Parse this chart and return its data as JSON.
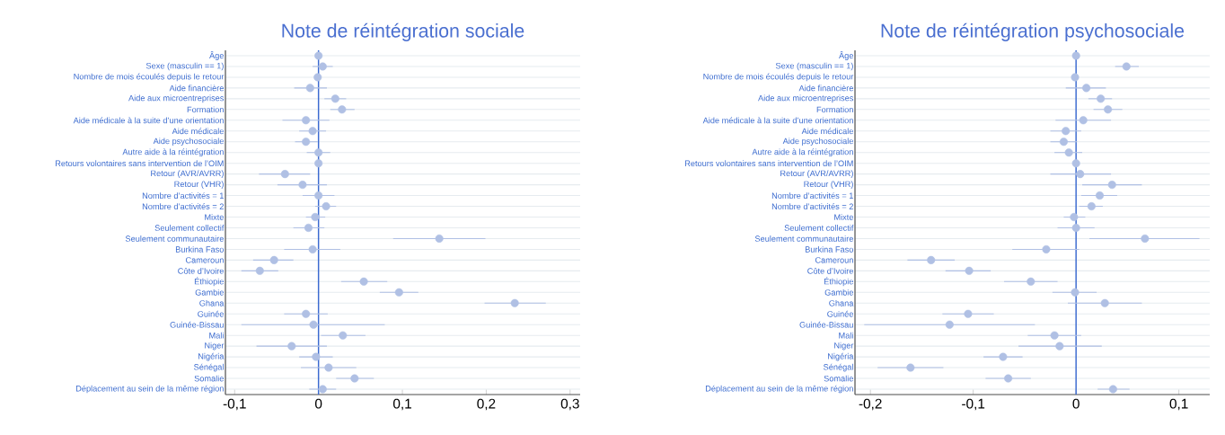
{
  "chart_data": [
    {
      "type": "scatter",
      "orientation": "horizontal",
      "title": "Note de réintégration sociale",
      "categories": [
        "Âge",
        "Sexe (masculin == 1)",
        "Nombre de mois écoulés depuis le retour",
        "Aide financière",
        "Aide aux microentreprises",
        "Formation",
        "Aide médicale à la suite d’une orientation",
        "Aide médicale",
        "Aide psychosociale",
        "Autre aide à la réintégration",
        "Retours volontaires sans intervention de l’OIM",
        "Retour (AVR/AVRR)",
        "Retour (VHR)",
        "Nombre d’activités = 1",
        "Nombre d’activités = 2",
        "Mixte",
        "Seulement collectif",
        "Seulement communautaire",
        "Burkina Faso",
        "Cameroun",
        "Côte d’Ivoire",
        "Éthiopie",
        "Gambie",
        "Ghana",
        "Guinée",
        "Guinée-Bissau",
        "Mali",
        "Niger",
        "Nigéria",
        "Sénégal",
        "Somalie",
        "Déplacement au sein de la même région"
      ],
      "values": [
        0,
        0.005,
        -0.001,
        -0.01,
        0.02,
        0.028,
        -0.015,
        -0.007,
        -0.015,
        0,
        0,
        -0.04,
        -0.019,
        0,
        0.009,
        -0.004,
        -0.012,
        0.144,
        -0.007,
        -0.053,
        -0.07,
        0.054,
        0.096,
        0.234,
        -0.015,
        -0.006,
        0.029,
        -0.032,
        -0.003,
        0.012,
        0.043,
        0.005
      ],
      "errors": [
        null,
        [
          -0.007,
          0.017
        ],
        null,
        [
          -0.029,
          0.01
        ],
        [
          0.007,
          0.033
        ],
        [
          0.014,
          0.043
        ],
        [
          -0.043,
          0.013
        ],
        [
          -0.023,
          0.009
        ],
        [
          -0.028,
          -0.001
        ],
        [
          -0.014,
          0.014
        ],
        null,
        [
          -0.071,
          -0.01
        ],
        [
          -0.049,
          0.01
        ],
        [
          -0.019,
          0.019
        ],
        [
          -0.004,
          0.021
        ],
        [
          -0.015,
          0.008
        ],
        [
          -0.03,
          0.007
        ],
        [
          0.089,
          0.199
        ],
        [
          -0.041,
          0.026
        ],
        [
          -0.078,
          -0.03
        ],
        [
          -0.092,
          -0.048
        ],
        [
          0.027,
          0.082
        ],
        [
          0.073,
          0.119
        ],
        [
          0.198,
          0.271
        ],
        [
          -0.041,
          0.011
        ],
        [
          -0.092,
          0.079
        ],
        [
          0.003,
          0.056
        ],
        [
          -0.074,
          0.01
        ],
        [
          -0.023,
          0.017
        ],
        [
          -0.021,
          0.045
        ],
        [
          0.021,
          0.066
        ],
        [
          -0.011,
          0.021
        ]
      ],
      "color": "#b0c0e4",
      "grid": "y",
      "xlim": [
        -0.111,
        0.312
      ],
      "xticks": [
        {
          "value": -0.1,
          "label": "-0,1"
        },
        0,
        {
          "value": 0.1,
          "label": "0,1"
        },
        {
          "value": 0.2,
          "label": "0,2"
        },
        {
          "value": 0.3,
          "label": "0,3"
        }
      ],
      "ref_lines": [
        {
          "axis": "x",
          "value": 0,
          "color": "#3b6ad0"
        }
      ]
    },
    {
      "type": "scatter",
      "orientation": "horizontal",
      "title": "Note de réintégration psychosociale",
      "categories": [
        "Âge",
        "Sexe (masculin == 1)",
        "Nombre de mois écoulés depuis le retour",
        "Aide financière",
        "Aide aux microentreprises",
        "Formation",
        "Aide médicale à la suite d’une orientation",
        "Aide médicale",
        "Aide psychosociale",
        "Autre aide à la réintégration",
        "Retours volontaires sans intervention de l’OIM",
        "Retour (AVR/AVRR)",
        "Retour (VHR)",
        "Nombre d’activités = 1",
        "Nombre d’activités = 2",
        "Mixte",
        "Seulement collectif",
        "Seulement communautaire",
        "Burkina Faso",
        "Cameroun",
        "Côte d’Ivoire",
        "Éthiopie",
        "Gambie",
        "Ghana",
        "Guinée",
        "Guinée-Bissau",
        "Mali",
        "Niger",
        "Nigéria",
        "Sénégal",
        "Somalie",
        "Déplacement au sein de la même région"
      ],
      "values": [
        0,
        0.049,
        -0.001,
        0.01,
        0.024,
        0.031,
        0.007,
        -0.01,
        -0.012,
        -0.007,
        0,
        0.004,
        0.035,
        0.023,
        0.015,
        -0.002,
        0,
        0.067,
        -0.029,
        -0.141,
        -0.104,
        -0.044,
        -0.001,
        0.028,
        -0.105,
        -0.123,
        -0.021,
        -0.016,
        -0.071,
        -0.161,
        -0.066,
        0.036
      ],
      "errors": [
        null,
        [
          0.038,
          0.061
        ],
        null,
        [
          -0.01,
          0.029
        ],
        [
          0.012,
          0.035
        ],
        [
          0.017,
          0.045
        ],
        [
          -0.02,
          0.034
        ],
        [
          -0.025,
          0.005
        ],
        [
          -0.025,
          0.001
        ],
        [
          -0.021,
          0.006
        ],
        null,
        [
          -0.025,
          0.034
        ],
        [
          0.006,
          0.064
        ],
        [
          0.005,
          0.04
        ],
        [
          0.003,
          0.026
        ],
        [
          -0.012,
          0.009
        ],
        [
          -0.018,
          0.018
        ],
        [
          0.013,
          0.12
        ],
        [
          -0.062,
          0.003
        ],
        [
          -0.164,
          -0.118
        ],
        [
          -0.127,
          -0.083
        ],
        [
          -0.07,
          -0.018
        ],
        [
          -0.023,
          0.02
        ],
        [
          -0.008,
          0.064
        ],
        [
          -0.13,
          -0.08
        ],
        [
          -0.206,
          -0.04
        ],
        [
          -0.047,
          0.005
        ],
        [
          -0.056,
          0.025
        ],
        [
          -0.09,
          -0.052
        ],
        [
          -0.193,
          -0.129
        ],
        [
          -0.088,
          -0.044
        ],
        [
          0.021,
          0.052
        ]
      ],
      "color": "#b0c0e4",
      "grid": "y",
      "xlim": [
        -0.215,
        0.13
      ],
      "xticks": [
        {
          "value": -0.2,
          "label": "-0,2"
        },
        {
          "value": -0.1,
          "label": "-0,1"
        },
        0,
        {
          "value": 0.1,
          "label": "0,1"
        }
      ],
      "ref_lines": [
        {
          "axis": "x",
          "value": 0,
          "color": "#3b6ad0"
        }
      ]
    }
  ]
}
